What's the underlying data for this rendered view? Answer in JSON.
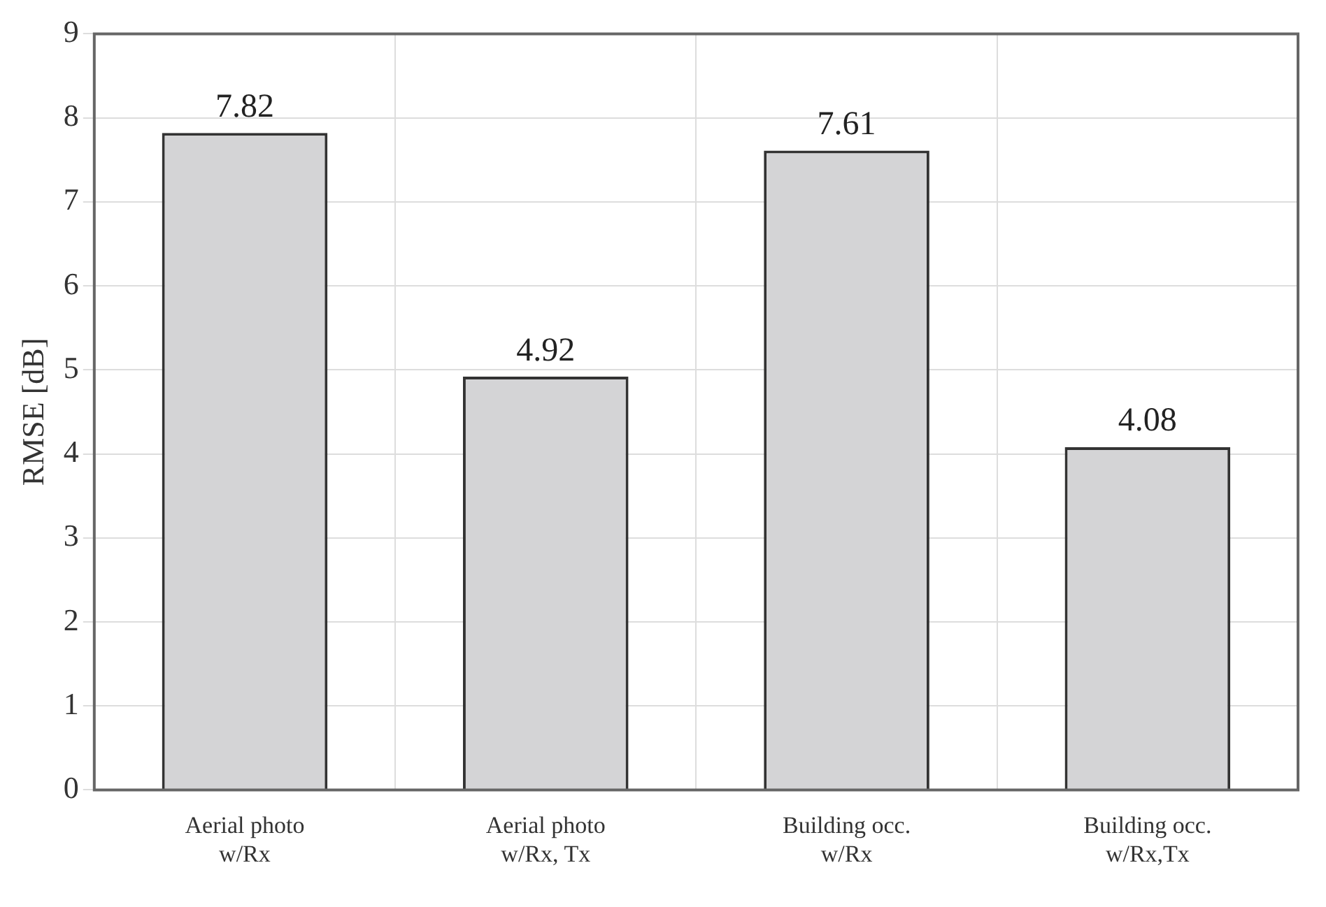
{
  "chart_data": {
    "type": "bar",
    "ylabel": "RMSE [dB]",
    "categories": [
      "Aerial photo\nw/Rx",
      "Aerial photo\nw/Rx, Tx",
      "Building occ.\nw/Rx",
      "Building occ.\nw/Rx,Tx"
    ],
    "values": [
      7.82,
      4.92,
      7.61,
      4.08
    ],
    "color": "#d4d4d6",
    "ylim": [
      0,
      9
    ],
    "yticks": [
      0,
      1,
      2,
      3,
      4,
      5,
      6,
      7,
      8,
      9
    ],
    "grid": true,
    "data_labels": true
  }
}
